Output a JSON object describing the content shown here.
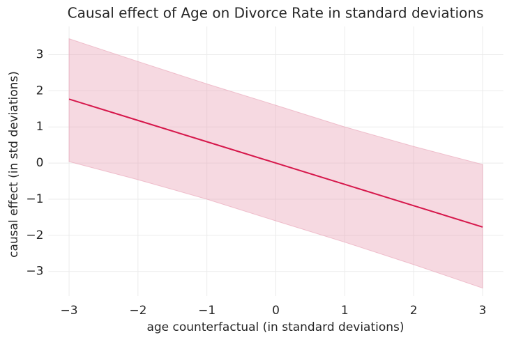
{
  "chart_data": {
    "type": "line_band",
    "title": "Causal effect of Age on Divorce Rate in standard deviations",
    "x_label": "age counterfactual (in standard deviations)",
    "y_label": "causal effect (in std deviations)",
    "x": [
      -3,
      -2,
      -1,
      0,
      1,
      2,
      3
    ],
    "series": [
      {
        "color": "#d6174b",
        "values": [
          1.77,
          1.18,
          0.59,
          0,
          -0.59,
          -1.18,
          -1.77
        ]
      }
    ],
    "band": {
      "color": "#e8a0b4",
      "upper": [
        3.44,
        2.81,
        2.19,
        1.6,
        1.0,
        0.46,
        -0.04
      ],
      "lower": [
        0.04,
        -0.46,
        -1.0,
        -1.6,
        -2.19,
        -2.81,
        -3.46
      ]
    },
    "xlim": [
      -3.3,
      3.3
    ],
    "ylim": [
      -3.68,
      3.78
    ],
    "xticks": [
      {
        "value": -3,
        "label": "−3"
      },
      {
        "value": -2,
        "label": "−2"
      },
      {
        "value": -1,
        "label": "−1"
      },
      0,
      1,
      2,
      3
    ],
    "yticks": [
      {
        "value": -3,
        "label": "−3"
      },
      {
        "value": -2,
        "label": "−2"
      },
      {
        "value": -1,
        "label": "−1"
      },
      0,
      1,
      2,
      3
    ],
    "grid": true
  }
}
